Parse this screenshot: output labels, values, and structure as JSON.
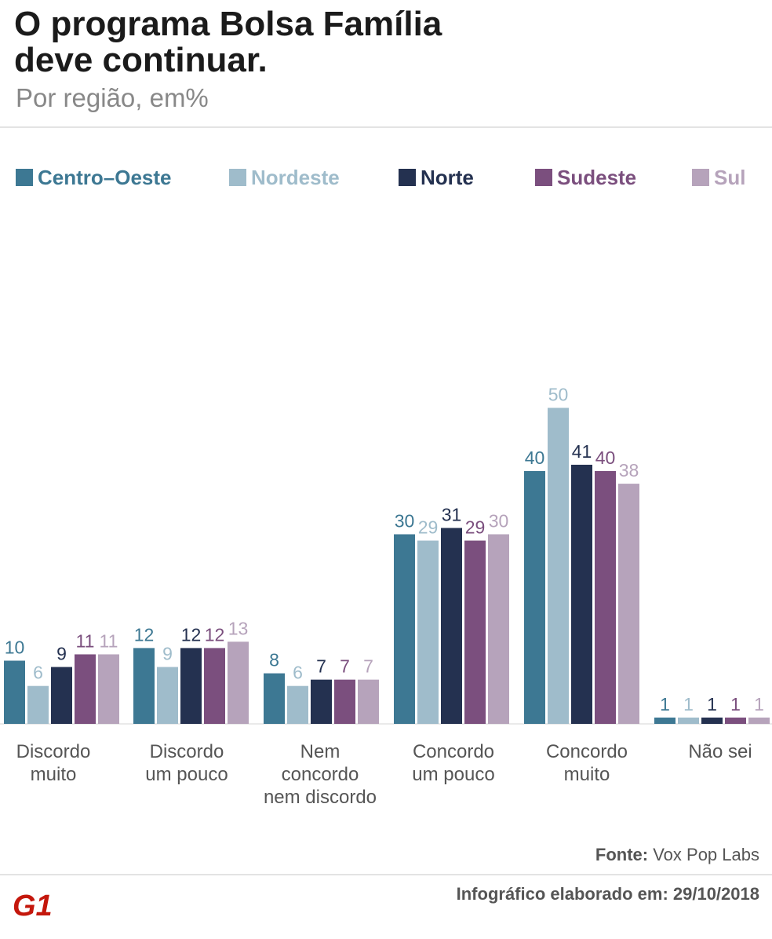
{
  "title_line1": "O programa Bolsa Família",
  "title_line2": "deve continuar.",
  "subtitle": "Por região, em%",
  "source_label": "Fonte:",
  "source_value": "Vox Pop Labs",
  "footer": "Infográfico elaborado em: 29/10/2018",
  "logo_text": "G1",
  "colors": {
    "Centro-Oeste": "#3d7893",
    "Nordeste": "#9fbccb",
    "Norte": "#243150",
    "Sudeste": "#7b4f7e",
    "Sul": "#b6a3bb"
  },
  "chart_data": {
    "type": "bar",
    "title": "O programa Bolsa Família deve continuar.",
    "subtitle": "Por região, em%",
    "categories": [
      [
        "Discordo",
        "muito"
      ],
      [
        "Discordo",
        "um pouco"
      ],
      [
        "Nem",
        "concordo",
        "nem discordo"
      ],
      [
        "Concordo",
        "um pouco"
      ],
      [
        "Concordo",
        "muito"
      ],
      [
        "Não sei"
      ]
    ],
    "series": [
      {
        "name": "Centro–Oeste",
        "key": "Centro-Oeste",
        "values": [
          10,
          12,
          8,
          30,
          40,
          1
        ]
      },
      {
        "name": "Nordeste",
        "key": "Nordeste",
        "values": [
          6,
          9,
          6,
          29,
          50,
          1
        ]
      },
      {
        "name": "Norte",
        "key": "Norte",
        "values": [
          9,
          12,
          7,
          31,
          41,
          1
        ]
      },
      {
        "name": "Sudeste",
        "key": "Sudeste",
        "values": [
          11,
          12,
          7,
          29,
          40,
          1
        ]
      },
      {
        "name": "Sul",
        "key": "Sul",
        "values": [
          11,
          13,
          7,
          30,
          38,
          1
        ]
      }
    ],
    "ylim": [
      0,
      50
    ],
    "legend": "top",
    "grid": false
  }
}
